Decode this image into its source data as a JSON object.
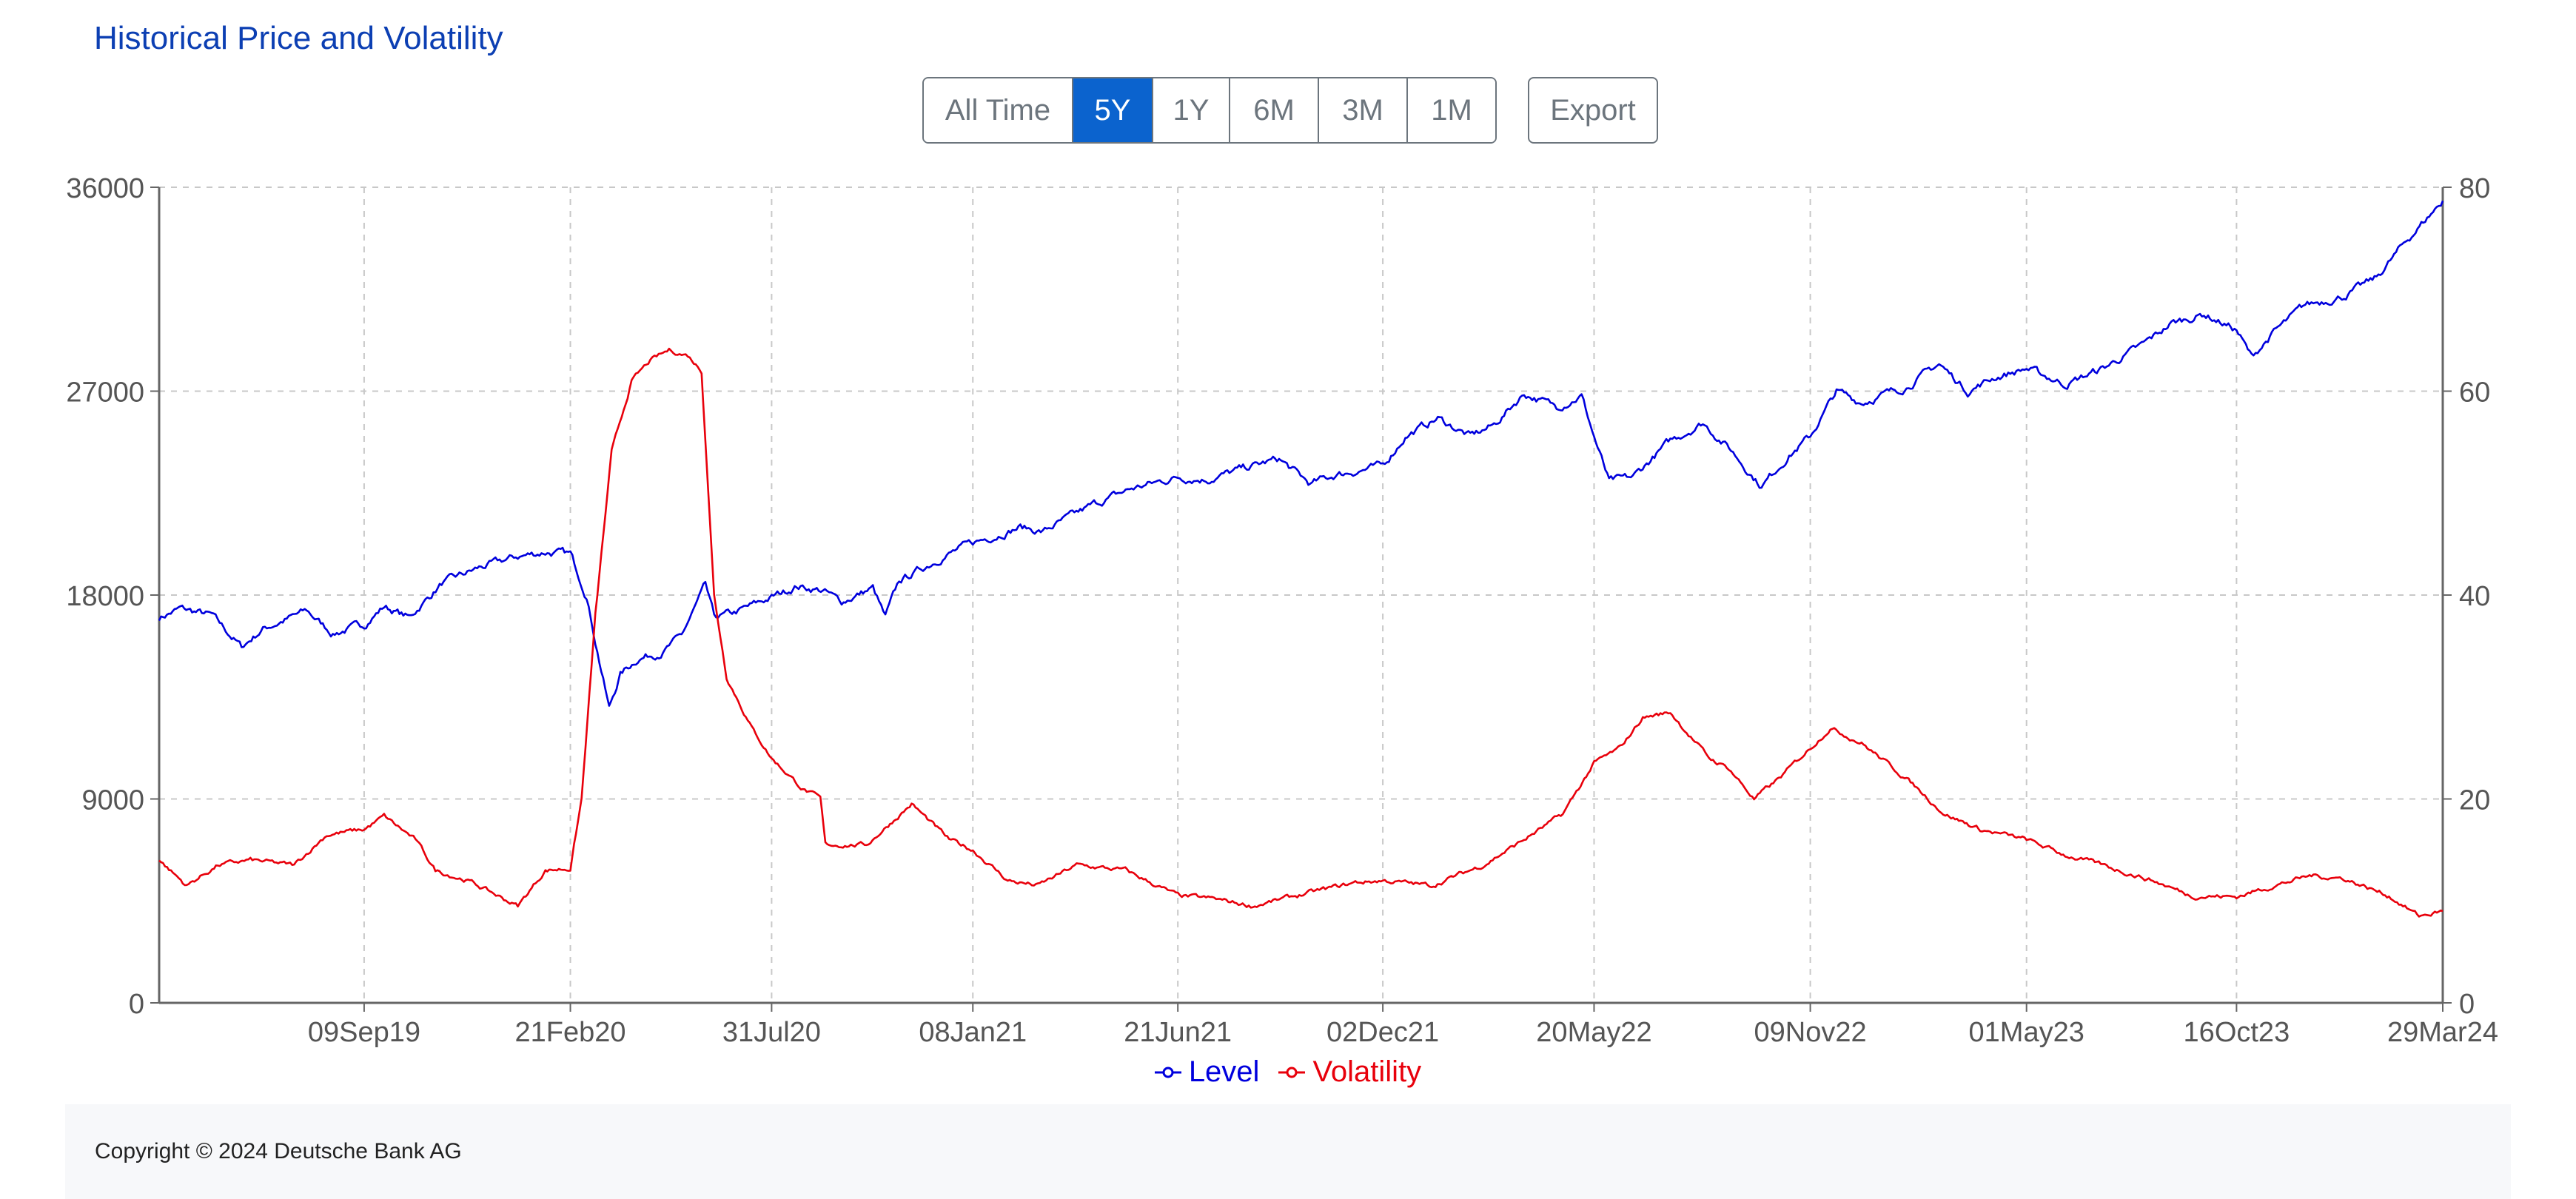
{
  "title": "Historical Price and Volatility",
  "toolbar": {
    "ranges": [
      {
        "label": "All Time",
        "active": false
      },
      {
        "label": "5Y",
        "active": true
      },
      {
        "label": "1Y",
        "active": false
      },
      {
        "label": "6M",
        "active": false
      },
      {
        "label": "3M",
        "active": false
      },
      {
        "label": "1M",
        "active": false
      }
    ],
    "export_label": "Export"
  },
  "colors": {
    "level": "#0000dd",
    "volatility": "#e8000b",
    "grid": "#c8c8c8",
    "axis": "#666666",
    "accent": "#0b63ce"
  },
  "footer": {
    "copyright": "Copyright © 2024 Deutsche Bank AG"
  },
  "chart_data": {
    "type": "line",
    "title": "Historical Price and Volatility",
    "x_range": [
      "2019-03-29",
      "2024-03-29"
    ],
    "x_ticks": [
      "09Sep19",
      "21Feb20",
      "31Jul20",
      "08Jan21",
      "21Jun21",
      "02Dec21",
      "20May22",
      "09Nov22",
      "01May23",
      "16Oct23",
      "29Mar24"
    ],
    "x_tick_dates": [
      "2019-09-09",
      "2020-02-21",
      "2020-07-31",
      "2021-01-08",
      "2021-06-21",
      "2021-12-02",
      "2022-05-20",
      "2022-11-09",
      "2023-05-01",
      "2023-10-16",
      "2024-03-29"
    ],
    "y_left": {
      "min": 0,
      "max": 36000,
      "ticks": [
        0,
        9000,
        18000,
        27000,
        36000
      ]
    },
    "y_right": {
      "min": 0,
      "max": 80,
      "ticks": [
        0,
        20,
        40,
        60,
        80
      ]
    },
    "grid": true,
    "legend_position": "bottom-center",
    "series": [
      {
        "name": "Level",
        "axis": "left",
        "points": [
          [
            "2019-03-29",
            17000
          ],
          [
            "2019-04-15",
            17400
          ],
          [
            "2019-05-10",
            17100
          ],
          [
            "2019-06-03",
            15700
          ],
          [
            "2019-06-20",
            16500
          ],
          [
            "2019-07-25",
            17300
          ],
          [
            "2019-08-15",
            16300
          ],
          [
            "2019-09-09",
            16700
          ],
          [
            "2019-09-25",
            17500
          ],
          [
            "2019-10-15",
            17000
          ],
          [
            "2019-11-10",
            18500
          ],
          [
            "2019-12-10",
            19200
          ],
          [
            "2020-01-10",
            19700
          ],
          [
            "2020-02-01",
            19900
          ],
          [
            "2020-02-21",
            19800
          ],
          [
            "2020-03-05",
            18000
          ],
          [
            "2020-03-12",
            16000
          ],
          [
            "2020-03-23",
            13000
          ],
          [
            "2020-04-01",
            14500
          ],
          [
            "2020-04-15",
            15200
          ],
          [
            "2020-05-05",
            15500
          ],
          [
            "2020-05-20",
            16200
          ],
          [
            "2020-06-08",
            18400
          ],
          [
            "2020-06-15",
            17000
          ],
          [
            "2020-07-01",
            17200
          ],
          [
            "2020-07-31",
            17900
          ],
          [
            "2020-08-20",
            18400
          ],
          [
            "2020-09-10",
            18200
          ],
          [
            "2020-09-25",
            17700
          ],
          [
            "2020-10-20",
            18300
          ],
          [
            "2020-10-30",
            17000
          ],
          [
            "2020-11-10",
            18600
          ],
          [
            "2020-12-15",
            19700
          ],
          [
            "2021-01-08",
            20300
          ],
          [
            "2021-02-15",
            21000
          ],
          [
            "2021-03-05",
            20800
          ],
          [
            "2021-04-15",
            22000
          ],
          [
            "2021-05-15",
            22700
          ],
          [
            "2021-06-21",
            23200
          ],
          [
            "2021-07-15",
            23100
          ],
          [
            "2021-08-20",
            23700
          ],
          [
            "2021-09-10",
            24000
          ],
          [
            "2021-10-05",
            22900
          ],
          [
            "2021-10-25",
            23300
          ],
          [
            "2021-12-02",
            23700
          ],
          [
            "2021-12-20",
            25000
          ],
          [
            "2022-01-15",
            25800
          ],
          [
            "2022-02-10",
            25000
          ],
          [
            "2022-03-01",
            25500
          ],
          [
            "2022-03-25",
            26900
          ],
          [
            "2022-04-20",
            26300
          ],
          [
            "2022-05-10",
            26800
          ],
          [
            "2022-05-20",
            25000
          ],
          [
            "2022-06-01",
            23000
          ],
          [
            "2022-06-20",
            23200
          ],
          [
            "2022-07-20",
            24800
          ],
          [
            "2022-08-15",
            25600
          ],
          [
            "2022-09-05",
            24500
          ],
          [
            "2022-10-01",
            22800
          ],
          [
            "2022-10-20",
            24000
          ],
          [
            "2022-11-09",
            25000
          ],
          [
            "2022-11-30",
            27000
          ],
          [
            "2022-12-20",
            26500
          ],
          [
            "2023-01-25",
            27200
          ],
          [
            "2023-02-20",
            28200
          ],
          [
            "2023-03-15",
            27000
          ],
          [
            "2023-04-05",
            27600
          ],
          [
            "2023-05-01",
            28000
          ],
          [
            "2023-06-01",
            27300
          ],
          [
            "2023-07-01",
            28000
          ],
          [
            "2023-08-01",
            29000
          ],
          [
            "2023-08-25",
            30000
          ],
          [
            "2023-09-20",
            30400
          ],
          [
            "2023-10-16",
            29700
          ],
          [
            "2023-10-28",
            28500
          ],
          [
            "2023-11-15",
            29600
          ],
          [
            "2023-12-10",
            30800
          ],
          [
            "2024-01-10",
            31200
          ],
          [
            "2024-02-05",
            32000
          ],
          [
            "2024-03-01",
            33700
          ],
          [
            "2024-03-29",
            35400
          ]
        ]
      },
      {
        "name": "Volatility",
        "axis": "right",
        "points": [
          [
            "2019-03-29",
            14
          ],
          [
            "2019-04-20",
            11.5
          ],
          [
            "2019-05-15",
            13.5
          ],
          [
            "2019-06-10",
            14
          ],
          [
            "2019-07-15",
            13.5
          ],
          [
            "2019-08-10",
            16.5
          ],
          [
            "2019-09-09",
            17
          ],
          [
            "2019-09-25",
            18.3
          ],
          [
            "2019-10-20",
            16
          ],
          [
            "2019-11-05",
            13
          ],
          [
            "2019-12-01",
            12
          ],
          [
            "2020-01-10",
            9.5
          ],
          [
            "2020-02-01",
            13
          ],
          [
            "2020-02-21",
            13.2
          ],
          [
            "2020-03-01",
            20
          ],
          [
            "2020-03-12",
            38
          ],
          [
            "2020-03-25",
            54
          ],
          [
            "2020-04-10",
            61
          ],
          [
            "2020-04-25",
            63
          ],
          [
            "2020-05-10",
            64
          ],
          [
            "2020-05-25",
            63.5
          ],
          [
            "2020-06-05",
            62
          ],
          [
            "2020-06-15",
            40
          ],
          [
            "2020-06-25",
            32
          ],
          [
            "2020-07-15",
            27
          ],
          [
            "2020-07-31",
            24
          ],
          [
            "2020-08-25",
            21
          ],
          [
            "2020-09-08",
            20
          ],
          [
            "2020-09-12",
            15.5
          ],
          [
            "2020-10-15",
            15.5
          ],
          [
            "2020-11-20",
            19.5
          ],
          [
            "2020-12-20",
            16
          ],
          [
            "2021-01-08",
            15
          ],
          [
            "2021-02-05",
            12
          ],
          [
            "2021-03-01",
            11.5
          ],
          [
            "2021-04-01",
            13.5
          ],
          [
            "2021-05-10",
            13
          ],
          [
            "2021-06-21",
            10.5
          ],
          [
            "2021-07-20",
            10.2
          ],
          [
            "2021-08-20",
            9.5
          ],
          [
            "2021-10-01",
            10.7
          ],
          [
            "2021-11-10",
            11.8
          ],
          [
            "2021-12-02",
            12
          ],
          [
            "2022-01-10",
            11.5
          ],
          [
            "2022-02-20",
            13.5
          ],
          [
            "2022-03-25",
            16
          ],
          [
            "2022-04-25",
            18.5
          ],
          [
            "2022-05-20",
            23.5
          ],
          [
            "2022-06-10",
            25
          ],
          [
            "2022-06-28",
            28
          ],
          [
            "2022-07-20",
            28.5
          ],
          [
            "2022-08-20",
            24
          ],
          [
            "2022-09-05",
            23
          ],
          [
            "2022-09-25",
            20
          ],
          [
            "2022-10-15",
            22
          ],
          [
            "2022-11-09",
            25
          ],
          [
            "2022-11-25",
            27
          ],
          [
            "2022-12-20",
            25.5
          ],
          [
            "2023-01-25",
            22
          ],
          [
            "2023-02-25",
            18.5
          ],
          [
            "2023-03-25",
            17
          ],
          [
            "2023-05-01",
            16
          ],
          [
            "2023-06-01",
            14.5
          ],
          [
            "2023-07-01",
            13.5
          ],
          [
            "2023-08-10",
            12
          ],
          [
            "2023-09-10",
            10.5
          ],
          [
            "2023-10-16",
            10.4
          ],
          [
            "2023-11-15",
            11.5
          ],
          [
            "2023-12-15",
            12.5
          ],
          [
            "2024-01-10",
            12.2
          ],
          [
            "2024-02-15",
            10.5
          ],
          [
            "2024-03-10",
            8.5
          ],
          [
            "2024-03-29",
            9
          ]
        ]
      }
    ]
  }
}
